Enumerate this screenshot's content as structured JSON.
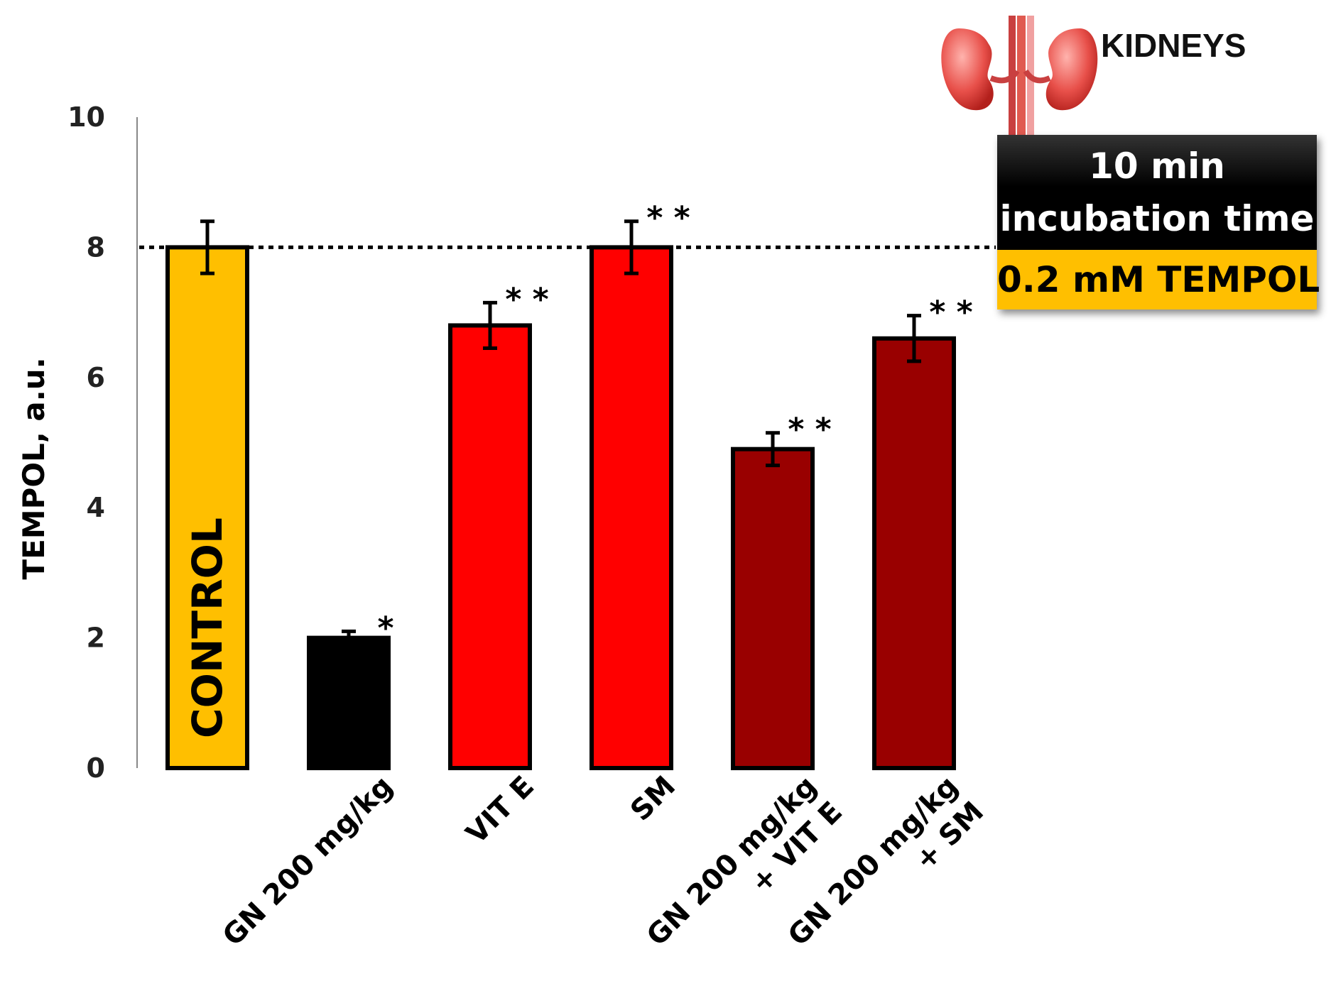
{
  "chart_data": {
    "type": "bar",
    "title": "",
    "xlabel": "",
    "ylabel": "TEMPOL, a.u.",
    "ylim": [
      0,
      10
    ],
    "yticks": [
      "0",
      "2",
      "4",
      "6",
      "8",
      "10"
    ],
    "reference_line": 8,
    "categories": [
      "CONTROL",
      "GN 200 mg/kg",
      "VIT E",
      "SM",
      "GN 200 mg/kg + VIT E",
      "GN 200 mg/kg + SM"
    ],
    "category_labels": [
      [
        "CONTROL"
      ],
      [
        "GN 200 mg/kg"
      ],
      [
        "VIT E"
      ],
      [
        "SM"
      ],
      [
        "GN 200 mg/kg",
        "+ VIT E"
      ],
      [
        "GN 200 mg/kg",
        "+ SM"
      ]
    ],
    "values": [
      8.0,
      2.0,
      6.8,
      8.0,
      4.9,
      6.6
    ],
    "errors": [
      0.4,
      0.1,
      0.35,
      0.4,
      0.25,
      0.35
    ],
    "significance": [
      "",
      "*",
      "**",
      "**",
      "**",
      "**"
    ],
    "bar_colors": [
      "#ffbf00",
      "#000000",
      "#ff0000",
      "#ff0000",
      "#990000",
      "#990000"
    ]
  },
  "organ_label": "KIDNEYS",
  "condition": {
    "line1": "10 min",
    "line2": "incubation time",
    "concentration": "0.2 mM TEMPOL"
  },
  "icons": {
    "organ": "kidneys-icon"
  }
}
